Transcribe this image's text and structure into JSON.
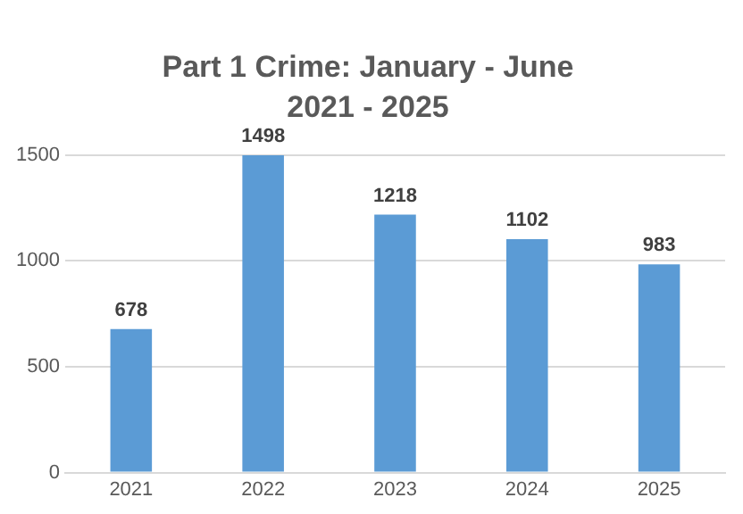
{
  "chart_data": {
    "type": "bar",
    "title": "Part 1 Crime: January - June",
    "subtitle": "2021 - 2025",
    "categories": [
      "2021",
      "2022",
      "2023",
      "2024",
      "2025"
    ],
    "values": [
      678,
      1498,
      1218,
      1102,
      983
    ],
    "color": "#5b9bd5",
    "ylim": [
      0,
      1500
    ],
    "yticks": [
      0,
      500,
      1000,
      1500
    ],
    "grid": "y",
    "data_labels": true
  }
}
